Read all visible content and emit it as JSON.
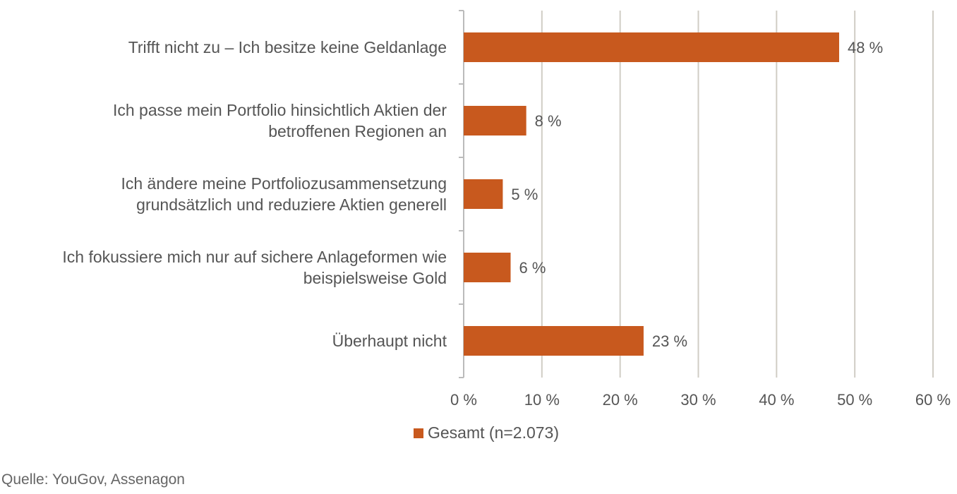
{
  "chart_data": {
    "type": "bar",
    "orientation": "horizontal",
    "categories": [
      [
        "Trifft nicht zu – Ich besitze keine Geldanlage"
      ],
      [
        "Ich passe mein Portfolio hinsichtlich Aktien der",
        "betroffenen Regionen an"
      ],
      [
        "Ich ändere meine Portfoliozusammensetzung",
        "grundsätzlich und reduziere Aktien generell"
      ],
      [
        "Ich fokussiere mich nur auf sichere Anlageformen wie",
        "beispielsweise Gold"
      ],
      [
        "Überhaupt nicht"
      ]
    ],
    "series": [
      {
        "name": "Gesamt (n=2.073)",
        "values": [
          48,
          8,
          5,
          6,
          23
        ],
        "value_labels": [
          "48 %",
          "8 %",
          "5 %",
          "6 %",
          "23 %"
        ]
      }
    ],
    "xlim": [
      0,
      60
    ],
    "xticks": [
      0,
      10,
      20,
      30,
      40,
      50,
      60
    ],
    "xtick_labels": [
      "0 %",
      "10 %",
      "20 %",
      "30 %",
      "40 %",
      "50 %",
      "60 %"
    ],
    "grid": true,
    "legend_position": "bottom",
    "title": "",
    "xlabel": "",
    "ylabel": ""
  },
  "colors": {
    "bar": "#c8591e",
    "grid": "#d0cdc5",
    "axis": "#bbbbbb"
  },
  "source": "Quelle: YouGov, Assenagon"
}
